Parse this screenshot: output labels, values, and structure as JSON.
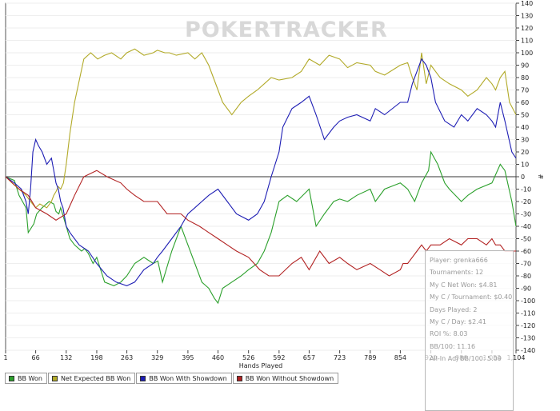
{
  "chart_data": {
    "type": "line",
    "watermark": "POKERTRACKER",
    "xlabel": "Hands Played",
    "ylabel": "#",
    "xlim": [
      1,
      1104
    ],
    "ylim": [
      -140,
      140
    ],
    "x_ticks": [
      "1",
      "66",
      "132",
      "198",
      "263",
      "329",
      "395",
      "460",
      "526",
      "592",
      "657",
      "723",
      "789",
      "854",
      "920",
      "986",
      "1,052",
      "1,104"
    ],
    "x_tick_values": [
      1,
      66,
      132,
      198,
      263,
      329,
      395,
      460,
      526,
      592,
      657,
      723,
      789,
      854,
      920,
      986,
      1052,
      1104
    ],
    "y_ticks": [
      "140",
      "130",
      "120",
      "110",
      "100",
      "90",
      "80",
      "70",
      "60",
      "50",
      "40",
      "30",
      "20",
      "10",
      "0",
      "-10",
      "-20",
      "-30",
      "-40",
      "-50",
      "-60",
      "-70",
      "-80",
      "-90",
      "-100",
      "-110",
      "-120",
      "-130",
      "-140"
    ],
    "y_tick_values": [
      140,
      130,
      120,
      110,
      100,
      90,
      80,
      70,
      60,
      50,
      40,
      30,
      20,
      10,
      0,
      -10,
      -20,
      -30,
      -40,
      -50,
      -60,
      -70,
      -80,
      -90,
      -100,
      -110,
      -120,
      -130,
      -140
    ],
    "series": [
      {
        "name": "BB Won",
        "color": "#2ca02c",
        "x": [
          1,
          20,
          30,
          45,
          50,
          62,
          68,
          80,
          95,
          105,
          110,
          116,
          120,
          128,
          140,
          150,
          165,
          172,
          180,
          190,
          198,
          215,
          235,
          250,
          263,
          280,
          300,
          320,
          330,
          340,
          360,
          380,
          395,
          410,
          425,
          440,
          452,
          460,
          470,
          490,
          510,
          526,
          545,
          560,
          575,
          592,
          610,
          630,
          657,
          672,
          690,
          710,
          723,
          740,
          760,
          789,
          800,
          820,
          854,
          870,
          885,
          900,
          915,
          920,
          935,
          950,
          960,
          986,
          1000,
          1020,
          1052,
          1070,
          1080,
          1095,
          1104
        ],
        "y": [
          0,
          -3,
          -15,
          -25,
          -45,
          -38,
          -30,
          -25,
          -20,
          -22,
          -28,
          -30,
          -25,
          -35,
          -50,
          -55,
          -60,
          -58,
          -62,
          -70,
          -65,
          -85,
          -88,
          -85,
          -80,
          -70,
          -65,
          -70,
          -68,
          -85,
          -60,
          -40,
          -55,
          -70,
          -85,
          -90,
          -98,
          -102,
          -90,
          -85,
          -80,
          -75,
          -70,
          -60,
          -45,
          -20,
          -15,
          -20,
          -10,
          -40,
          -30,
          -20,
          -18,
          -20,
          -15,
          -10,
          -20,
          -10,
          -5,
          -10,
          -20,
          -5,
          5,
          20,
          10,
          -5,
          -10,
          -20,
          -15,
          -10,
          -5,
          10,
          5,
          -20,
          -40
        ]
      },
      {
        "name": "Net Expected BB Won",
        "color": "#b2aa29",
        "x": [
          1,
          15,
          30,
          45,
          55,
          66,
          75,
          90,
          100,
          105,
          110,
          115,
          120,
          126,
          132,
          140,
          150,
          170,
          185,
          200,
          215,
          230,
          250,
          263,
          280,
          300,
          320,
          329,
          345,
          355,
          370,
          395,
          410,
          425,
          440,
          450,
          460,
          470,
          490,
          510,
          526,
          545,
          560,
          575,
          592,
          620,
          640,
          657,
          680,
          700,
          723,
          740,
          760,
          789,
          800,
          820,
          854,
          870,
          880,
          890,
          900,
          910,
          920,
          940,
          960,
          986,
          1000,
          1020,
          1040,
          1052,
          1060,
          1070,
          1080,
          1090,
          1104
        ],
        "y": [
          0,
          -5,
          -10,
          -15,
          -20,
          -25,
          -22,
          -25,
          -20,
          -15,
          -12,
          -8,
          -10,
          -5,
          10,
          35,
          60,
          95,
          100,
          95,
          98,
          100,
          95,
          100,
          103,
          98,
          100,
          102,
          100,
          100,
          98,
          100,
          95,
          100,
          90,
          80,
          70,
          60,
          50,
          60,
          65,
          70,
          75,
          80,
          78,
          80,
          85,
          95,
          90,
          98,
          95,
          88,
          92,
          90,
          85,
          82,
          90,
          92,
          80,
          70,
          100,
          75,
          90,
          80,
          75,
          70,
          65,
          70,
          80,
          75,
          70,
          80,
          85,
          60,
          50
        ]
      },
      {
        "name": "BB Won With Showdown",
        "color": "#1e1eb4",
        "x": [
          1,
          20,
          35,
          45,
          50,
          55,
          60,
          66,
          72,
          80,
          90,
          100,
          105,
          110,
          115,
          120,
          125,
          132,
          140,
          160,
          180,
          198,
          220,
          240,
          263,
          280,
          300,
          320,
          329,
          340,
          360,
          380,
          395,
          410,
          425,
          440,
          460,
          480,
          500,
          526,
          545,
          560,
          575,
          592,
          600,
          620,
          640,
          657,
          672,
          690,
          710,
          723,
          740,
          760,
          789,
          800,
          820,
          854,
          870,
          880,
          890,
          900,
          910,
          920,
          930,
          950,
          970,
          986,
          1000,
          1020,
          1040,
          1052,
          1060,
          1070,
          1080,
          1095,
          1104
        ],
        "y": [
          0,
          -5,
          -10,
          -20,
          -30,
          -10,
          20,
          30,
          25,
          20,
          10,
          15,
          5,
          -5,
          -10,
          -20,
          -25,
          -40,
          -45,
          -55,
          -60,
          -70,
          -80,
          -85,
          -88,
          -85,
          -75,
          -70,
          -65,
          -60,
          -50,
          -40,
          -30,
          -25,
          -20,
          -15,
          -10,
          -20,
          -30,
          -35,
          -30,
          -20,
          0,
          20,
          40,
          55,
          60,
          65,
          50,
          30,
          40,
          45,
          48,
          50,
          45,
          55,
          50,
          60,
          60,
          75,
          85,
          95,
          90,
          80,
          60,
          45,
          40,
          50,
          45,
          55,
          50,
          45,
          40,
          60,
          45,
          20,
          15
        ]
      },
      {
        "name": "BB Won Without Showdown",
        "color": "#b22222",
        "x": [
          1,
          30,
          50,
          66,
          90,
          110,
          132,
          150,
          170,
          198,
          220,
          250,
          263,
          280,
          300,
          329,
          350,
          380,
          395,
          420,
          440,
          460,
          480,
          500,
          526,
          550,
          570,
          592,
          620,
          640,
          657,
          680,
          700,
          723,
          740,
          760,
          789,
          810,
          830,
          854,
          860,
          870,
          880,
          890,
          900,
          910,
          920,
          940,
          960,
          986,
          1000,
          1020,
          1040,
          1052,
          1060,
          1070,
          1080,
          1095,
          1104
        ],
        "y": [
          0,
          -10,
          -15,
          -25,
          -30,
          -35,
          -30,
          -15,
          0,
          5,
          0,
          -5,
          -10,
          -15,
          -20,
          -20,
          -30,
          -30,
          -35,
          -40,
          -45,
          -50,
          -55,
          -60,
          -65,
          -75,
          -80,
          -80,
          -70,
          -65,
          -75,
          -60,
          -70,
          -65,
          -70,
          -75,
          -70,
          -75,
          -80,
          -75,
          -70,
          -70,
          -65,
          -60,
          -55,
          -60,
          -55,
          -55,
          -50,
          -55,
          -50,
          -50,
          -55,
          -50,
          -55,
          -55,
          -60,
          -60,
          -60
        ]
      }
    ],
    "legend": [
      {
        "label": "BB Won",
        "color": "#2ca02c"
      },
      {
        "label": "Net Expected BB Won",
        "color": "#b2aa29"
      },
      {
        "label": "BB Won With Showdown",
        "color": "#1e1eb4"
      },
      {
        "label": "BB Won Without Showdown",
        "color": "#b22222"
      }
    ],
    "stats_box": [
      "Player: grenka666",
      "Tournaments: 12",
      "My C Net Won: $4.81",
      "My C / Tournament: $0.40",
      "Days Played: 2",
      "My C / Day: $2.41",
      "ROI %: 8.03",
      "BB/100: 11.16",
      "All-In Adj BB/100: 5.09"
    ]
  }
}
